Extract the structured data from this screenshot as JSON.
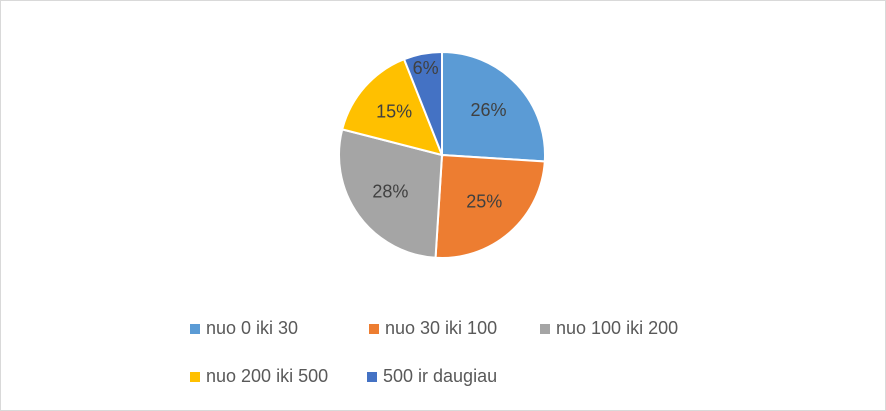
{
  "chart_data": {
    "type": "pie",
    "categories": [
      "nuo 0 iki 30",
      "nuo 30 iki 100",
      "nuo 100 iki 200",
      "nuo 200 iki 500",
      "500 ir daugiau"
    ],
    "values": [
      26,
      25,
      28,
      15,
      6
    ],
    "value_labels": [
      "26%",
      "25%",
      "28%",
      "15%",
      "6%"
    ],
    "colors": [
      "#5b9bd5",
      "#ed7d31",
      "#a5a5a5",
      "#ffc000",
      "#4472c4"
    ],
    "legend": "bottom"
  }
}
